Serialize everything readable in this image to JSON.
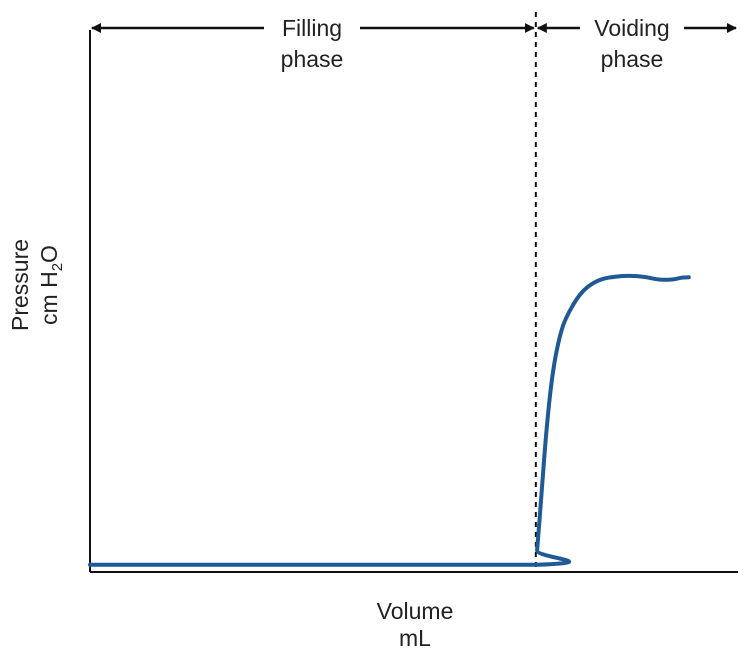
{
  "chart_data": {
    "type": "line",
    "title": "",
    "xlabel": {
      "line1": "Volume",
      "line2": "mL"
    },
    "ylabel": {
      "line1": "Pressure",
      "line2_prefix": "cm H",
      "line2_sub": "2",
      "line2_suffix": "O"
    },
    "xlim": [
      0,
      100
    ],
    "ylim": [
      0,
      100
    ],
    "grid": false,
    "ticks": false,
    "phase_divider_x": 68.8,
    "phases": [
      {
        "label_line1": "Filling",
        "label_line2": "phase"
      },
      {
        "label_line1": "Voiding",
        "label_line2": "phase"
      }
    ],
    "series": [
      {
        "color": "#1f5a96",
        "x": [
          0,
          68.8,
          69.0,
          69.4,
          69.9,
          70.5,
          71.2,
          72.0,
          73.0,
          74.3,
          75.8,
          77.4,
          79.2,
          81.2,
          83.4,
          85.6,
          87.8,
          89.8,
          91.3,
          92.4
        ],
        "y": [
          2,
          2,
          6,
          15,
          27,
          40,
          52,
          61,
          68,
          73,
          77,
          79.5,
          81,
          81.6,
          81.8,
          81.5,
          80.8,
          80.8,
          81.3,
          81.4
        ]
      }
    ]
  }
}
